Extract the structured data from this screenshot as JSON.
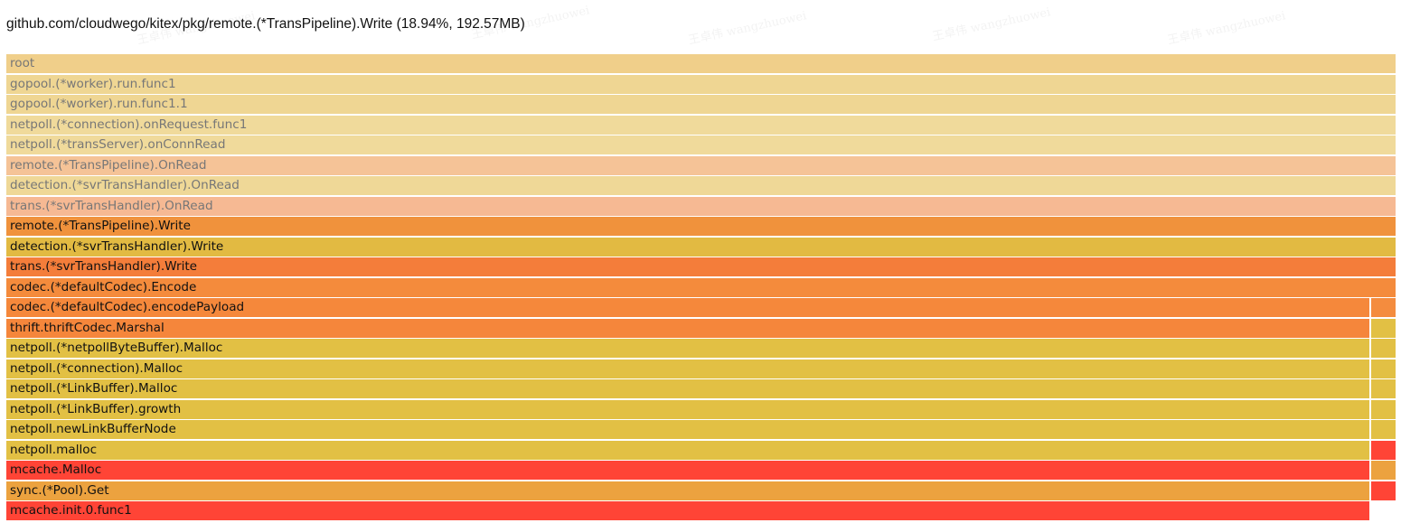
{
  "header": {
    "title": "github.com/cloudwego/kitex/pkg/remote.(*TransPipeline).Write (18.94%, 192.57MB)"
  },
  "watermark": "王卓伟 wangzhuowei",
  "flamegraph": {
    "rows": [
      {
        "label": "root",
        "color": "#f0cf8a",
        "faded": true,
        "side_color": null
      },
      {
        "label": "gopool.(*worker).run.func1",
        "color": "#efd693",
        "faded": true,
        "side_color": null
      },
      {
        "label": "gopool.(*worker).run.func1.1",
        "color": "#efd693",
        "faded": true,
        "side_color": null
      },
      {
        "label": "netpoll.(*connection).onRequest.func1",
        "color": "#f0da9b",
        "faded": true,
        "side_color": null
      },
      {
        "label": "netpoll.(*transServer).onConnRead",
        "color": "#f0da9b",
        "faded": true,
        "side_color": null
      },
      {
        "label": "remote.(*TransPipeline).OnRead",
        "color": "#f5c397",
        "faded": true,
        "side_color": null
      },
      {
        "label": "detection.(*svrTransHandler).OnRead",
        "color": "#efd897",
        "faded": true,
        "side_color": null
      },
      {
        "label": "trans.(*svrTransHandler).OnRead",
        "color": "#f6b993",
        "faded": true,
        "side_color": null
      },
      {
        "label": "remote.(*TransPipeline).Write",
        "color": "#f0923c",
        "faded": false,
        "side_color": null
      },
      {
        "label": "detection.(*svrTransHandler).Write",
        "color": "#e2ba42",
        "faded": false,
        "side_color": null
      },
      {
        "label": "trans.(*svrTransHandler).Write",
        "color": "#f47d3a",
        "faded": false,
        "side_color": null
      },
      {
        "label": "codec.(*defaultCodec).Encode",
        "color": "#f48b3c",
        "faded": false,
        "side_color": null
      },
      {
        "label": "codec.(*defaultCodec).encodePayload",
        "color": "#f5883b",
        "faded": false,
        "side_color": "#f48c3e"
      },
      {
        "label": "thrift.thriftCodec.Marshal",
        "color": "#f5863b",
        "faded": false,
        "side_color": "#e2c044"
      },
      {
        "label": "netpoll.(*netpollByteBuffer).Malloc",
        "color": "#e2c044",
        "faded": false,
        "side_color": "#e2c044"
      },
      {
        "label": "netpoll.(*connection).Malloc",
        "color": "#e2c044",
        "faded": false,
        "side_color": "#e2c044"
      },
      {
        "label": "netpoll.(*LinkBuffer).Malloc",
        "color": "#e2c044",
        "faded": false,
        "side_color": "#e2c044"
      },
      {
        "label": "netpoll.(*LinkBuffer).growth",
        "color": "#e2c044",
        "faded": false,
        "side_color": "#e2c044"
      },
      {
        "label": "netpoll.newLinkBufferNode",
        "color": "#e2c044",
        "faded": false,
        "side_color": "#e2c044"
      },
      {
        "label": "netpoll.malloc",
        "color": "#e2c044",
        "faded": false,
        "side_color": "#ff4436"
      },
      {
        "label": "mcache.Malloc",
        "color": "#ff4436",
        "faded": false,
        "side_color": "#eca23f"
      },
      {
        "label": "sync.(*Pool).Get",
        "color": "#eca23f",
        "faded": false,
        "side_color": "#ff4436"
      },
      {
        "label": "mcache.init.0.func1",
        "color": "#ff4436",
        "faded": false,
        "side_color": null
      }
    ]
  }
}
